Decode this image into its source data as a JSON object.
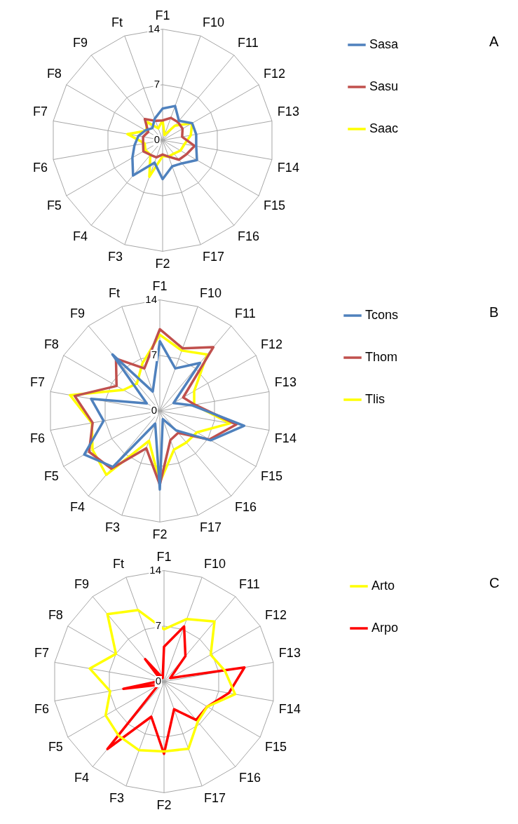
{
  "chart_data": [
    {
      "type": "radar",
      "categories": [
        "F1",
        "F10",
        "F11",
        "F12",
        "F13",
        "F14",
        "F15",
        "F16",
        "F17",
        "F2",
        "F3",
        "F4",
        "F5",
        "F6",
        "F7",
        "F8",
        "F9",
        "Ft"
      ],
      "ylim": [
        0,
        14
      ],
      "yticks": [
        0,
        7,
        14
      ],
      "legend": "top right",
      "marker": "none",
      "annotations": [
        "A"
      ],
      "series": [
        {
          "name": "Sasa",
          "color": "#4f81bd",
          "values": [
            4.0,
            4.6,
            3.2,
            4.3,
            4.3,
            4.3,
            5.0,
            3.8,
            3.5,
            4.9,
            3.0,
            5.8,
            4.4,
            3.6,
            3.1,
            2.5,
            2.0,
            2.9
          ]
        },
        {
          "name": "Sasu",
          "color": "#c0504d",
          "values": [
            2.5,
            3.0,
            3.0,
            2.9,
            2.5,
            4.1,
            3.5,
            3.2,
            2.2,
            1.8,
            2.3,
            2.4,
            2.8,
            2.5,
            2.5,
            2.1,
            3.5,
            2.6
          ]
        },
        {
          "name": "Saac",
          "color": "#ffff00",
          "values": [
            2.5,
            0.7,
            2.4,
            4.3,
            3.6,
            2.8,
            2.6,
            2.2,
            2.2,
            2.0,
            4.9,
            2.4,
            2.5,
            2.3,
            4.5,
            2.4,
            3.0,
            1.6
          ]
        }
      ]
    },
    {
      "type": "radar",
      "categories": [
        "F1",
        "F10",
        "F11",
        "F12",
        "F13",
        "F14",
        "F15",
        "F16",
        "F17",
        "F2",
        "F3",
        "F4",
        "F5",
        "F6",
        "F7",
        "F8",
        "F9",
        "Ft"
      ],
      "ylim": [
        0,
        14
      ],
      "yticks": [
        0,
        7,
        14
      ],
      "legend": "top right",
      "marker": "none",
      "annotations": [
        "B"
      ],
      "series": [
        {
          "name": "Tcons",
          "color": "#4f81bd",
          "values": [
            8.8,
            5.7,
            7.9,
            2.0,
            4.1,
            10.8,
            7.4,
            3.2,
            1.1,
            9.9,
            1.7,
            9.2,
            11.0,
            7.2,
            8.8,
            1.9,
            9.3,
            2.6
          ]
        },
        {
          "name": "Thom",
          "color": "#c0504d",
          "values": [
            10.3,
            8.4,
            10.5,
            3.4,
            4.5,
            9.8,
            7.2,
            3.6,
            3.9,
            9.3,
            5.0,
            9.5,
            10.3,
            8.6,
            10.9,
            6.3,
            8.6,
            5.7
          ]
        },
        {
          "name": "Tlis",
          "color": "#ffff00",
          "values": [
            9.6,
            8.1,
            9.3,
            5.0,
            4.4,
            9.0,
            5.4,
            5.2,
            5.2,
            9.0,
            4.0,
            10.5,
            9.8,
            8.7,
            11.5,
            5.3,
            4.5,
            6.4
          ]
        }
      ]
    },
    {
      "type": "radar",
      "categories": [
        "F1",
        "F10",
        "F11",
        "F12",
        "F13",
        "F14",
        "F15",
        "F16",
        "F17",
        "F2",
        "F3",
        "F4",
        "F5",
        "F6",
        "F7",
        "F8",
        "F9",
        "Ft"
      ],
      "ylim": [
        0,
        14
      ],
      "yticks": [
        0,
        7,
        14
      ],
      "legend": "top right",
      "marker": "none",
      "annotations": [
        "C"
      ],
      "series": [
        {
          "name": "Arto",
          "color": "#ffff00",
          "values": [
            6.6,
            8.4,
            9.9,
            6.8,
            7.8,
            9.1,
            6.3,
            6.6,
            9.0,
            8.8,
            9.2,
            8.9,
            8.5,
            6.9,
            9.5,
            7.0,
            11.1,
            9.6
          ]
        },
        {
          "name": "Arpo",
          "color": "#ff0000",
          "values": [
            4.4,
            7.4,
            4.2,
            0.9,
            10.3,
            8.3,
            6.3,
            6.3,
            3.7,
            9.1,
            4.7,
            11.1,
            0.8,
            5.2,
            0.5,
            0.5,
            3.7,
            0.5
          ]
        }
      ]
    }
  ]
}
